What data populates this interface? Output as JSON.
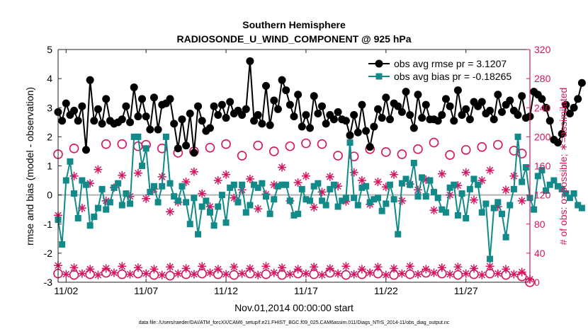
{
  "chart_data": {
    "type": "line",
    "title": "Southern Hemisphere",
    "subtitle": "RADIOSONDE_U_WIND_COMPONENT @ 925 hPa",
    "xlabel": "Nov.01,2014 00:00:00 start",
    "ylabel_left": "rmse and bias (model - observation)",
    "ylabel_right": "# of obs: o=possible; ∗=assimilated",
    "footer": "data file: /Users/raeder/DAI/ATM_forcXX/CAM6_setup/f.e21.FHIST_BGC.f09_025.CAM6assim.011/Diags_NTrS_2014-11/obs_diag_output.nc",
    "xlim": [
      1.5,
      31.0
    ],
    "ylim_left": [
      -3,
      5
    ],
    "ylim_right": [
      0,
      320
    ],
    "x_ticks": [
      2,
      7,
      12,
      17,
      22,
      27
    ],
    "x_tick_labels": [
      "11/02",
      "11/07",
      "11/12",
      "11/17",
      "11/22",
      "11/27"
    ],
    "y_ticks_left": [
      -3,
      -2,
      -1,
      0,
      1,
      2,
      3,
      4,
      5
    ],
    "y_ticks_right": [
      0,
      40,
      80,
      120,
      160,
      200,
      240,
      280,
      320
    ],
    "legend": [
      "obs avg rmse pr = 3.1207",
      "obs avg bias pr = -0.18265"
    ],
    "colors": {
      "rmse": "#000000",
      "bias": "#138a8a",
      "obs": "#d6145f",
      "zero_line": "#b3b3b3"
    },
    "time_start": 1.5,
    "time_step": 0.25,
    "series": [
      {
        "name": "obs avg rmse pr",
        "axis": "left",
        "values": [
          2.85,
          2.55,
          3.15,
          2.75,
          2.9,
          2.55,
          3.05,
          1.55,
          3.95,
          2.55,
          2.95,
          2.45,
          3.3,
          2.55,
          2.45,
          2.5,
          2.6,
          3.05,
          2.5,
          3.7,
          2.7,
          3.3,
          2.7,
          2.25,
          3.35,
          2.25,
          3.1,
          3.15,
          3.3,
          2.45,
          1.6,
          2.6,
          1.7,
          2.8,
          1.45,
          3.05,
          2.55,
          2.2,
          2.3,
          3.05,
          2.75,
          3.1,
          2.65,
          3.2,
          2.8,
          2.9,
          2.75,
          2.95,
          4.6,
          2.55,
          2.75,
          2.45,
          3.75,
          2.4,
          3.25,
          2.95,
          3.95,
          3.6,
          3.1,
          2.7,
          3.45,
          2.35,
          2.75,
          2.3,
          3.4,
          2.8,
          3.05,
          2.45,
          2.75,
          2.6,
          2.85,
          2.6,
          2.55,
          2.05,
          2.75,
          2.15,
          3.1,
          2.2,
          1.65,
          2.35,
          2.95,
          2.65,
          3.35,
          2.6,
          3.15,
          3.05,
          2.85,
          3.55,
          2.75,
          2.3,
          3.45,
          2.65,
          3.1,
          2.6,
          2.6,
          2.55,
          2.75,
          3.3,
          3.05,
          2.55,
          3.6,
          2.75,
          2.95,
          2.6,
          3.2,
          3.05,
          3.2,
          2.8,
          2.9,
          2.6,
          3.45,
          2.85,
          3.1,
          3.25,
          2.9,
          2.75,
          3.4,
          2.65,
          2.7,
          3.55,
          3.45,
          3.3,
          3.0,
          2.55,
          1.9,
          1.8,
          2.1,
          3.1,
          2.8,
          3.0,
          3.3,
          3.85
        ]
      },
      {
        "name": "obs avg bias pr",
        "axis": "left",
        "values": [
          -0.85,
          -1.7,
          0.5,
          1.15,
          0.05,
          -0.8,
          0.5,
          0.35,
          -1.05,
          -0.75,
          -0.45,
          0.2,
          -0.5,
          -0.25,
          0.25,
          0.4,
          -0.35,
          0.05,
          -0.3,
          2.0,
          2.0,
          1.0,
          1.6,
          0.1,
          0.3,
          -0.25,
          0.3,
          2.0,
          0.4,
          -0.05,
          -0.2,
          0.3,
          -0.25,
          -1.0,
          -0.1,
          -1.35,
          -0.4,
          -0.2,
          -0.6,
          -1.05,
          -0.4,
          0.0,
          -0.95,
          0.25,
          0.35,
          -0.25,
          0.35,
          -0.6,
          -0.35,
          0.35,
          0.25,
          0.4,
          -0.05,
          -0.65,
          -0.15,
          0.3,
          0.35,
          0.35,
          -0.2,
          -0.7,
          -0.65,
          0.2,
          -0.15,
          -0.2,
          0.3,
          0.4,
          -0.2,
          -0.35,
          0.2,
          0.35,
          -0.4,
          -0.2,
          -0.1,
          1.8,
          -0.1,
          -0.35,
          0.25,
          0.3,
          -0.25,
          -0.15,
          -0.1,
          -0.55,
          -0.3,
          0.35,
          -0.15,
          -1.35,
          0.4,
          0.55,
          0.35,
          1.1,
          -0.05,
          0.6,
          -0.05,
          0.5,
          0.1,
          -0.1,
          -0.5,
          -0.6,
          0.25,
          0.35,
          -0.7,
          0.05,
          -0.8,
          0.2,
          0.55,
          0.35,
          -0.6,
          -0.3,
          -2.2,
          -0.45,
          -0.25,
          -0.65,
          -1.45,
          -0.35,
          0.2,
          2.0,
          0.45,
          0.95,
          -0.1,
          -0.5,
          0.65,
          0.85,
          0.15,
          0.35,
          0.5,
          0.3,
          0.2,
          0.05,
          -0.1,
          0.05,
          -0.35,
          -0.45
        ]
      },
      {
        "name": "obs possible (o) - high",
        "axis": "right",
        "points": [
          [
            1.5,
            176
          ],
          [
            2.5,
            184
          ],
          [
            4.5,
            190
          ],
          [
            5.5,
            190
          ],
          [
            6.5,
            187
          ],
          [
            7.0,
            189
          ],
          [
            8.0,
            184
          ],
          [
            9.0,
            178
          ],
          [
            10.0,
            180
          ],
          [
            11.0,
            185
          ],
          [
            12.0,
            190
          ],
          [
            13.0,
            174
          ],
          [
            14.0,
            188
          ],
          [
            15.0,
            180
          ],
          [
            16.0,
            187
          ],
          [
            17.0,
            191
          ],
          [
            18.0,
            190
          ],
          [
            19.0,
            174
          ],
          [
            20.0,
            173
          ],
          [
            21.0,
            183
          ],
          [
            22.0,
            179
          ],
          [
            23.0,
            176
          ],
          [
            24.0,
            183
          ],
          [
            25.0,
            192
          ],
          [
            26.0,
            175
          ],
          [
            27.0,
            182
          ],
          [
            28.0,
            186
          ],
          [
            29.0,
            189
          ],
          [
            30.0,
            181
          ],
          [
            30.5,
            177
          ]
        ]
      },
      {
        "name": "obs possible (o) - low",
        "axis": "right",
        "points": [
          [
            1.5,
            12
          ],
          [
            2.5,
            10
          ],
          [
            3.5,
            11
          ],
          [
            4.5,
            13
          ],
          [
            5.5,
            11
          ],
          [
            6.5,
            12
          ],
          [
            7.5,
            10
          ],
          [
            8.5,
            9
          ],
          [
            9.5,
            11
          ],
          [
            10.5,
            12
          ],
          [
            11.5,
            11
          ],
          [
            12.5,
            10
          ],
          [
            13.5,
            12
          ],
          [
            14.5,
            11
          ],
          [
            15.5,
            10
          ],
          [
            16.5,
            12
          ],
          [
            17.5,
            11
          ],
          [
            18.5,
            13
          ],
          [
            19.5,
            10
          ],
          [
            20.5,
            11
          ],
          [
            21.5,
            12
          ],
          [
            22.5,
            10
          ],
          [
            23.5,
            11
          ],
          [
            24.5,
            13
          ],
          [
            25.5,
            12
          ],
          [
            26.5,
            10
          ],
          [
            27.5,
            11
          ],
          [
            28.5,
            12
          ],
          [
            29.5,
            10
          ],
          [
            30.5,
            8
          ],
          [
            31.0,
            0
          ]
        ]
      },
      {
        "name": "obs assimilated (*) - high",
        "axis": "right",
        "points": [
          [
            1.5,
            92
          ],
          [
            2.5,
            146
          ],
          [
            3.0,
            102
          ],
          [
            3.5,
            136
          ],
          [
            4.0,
            155
          ],
          [
            4.5,
            112
          ],
          [
            5.0,
            130
          ],
          [
            5.5,
            147
          ],
          [
            6.0,
            118
          ],
          [
            6.5,
            150
          ],
          [
            7.0,
            115
          ],
          [
            7.5,
            128
          ],
          [
            8.0,
            145
          ],
          [
            8.5,
            97
          ],
          [
            9.0,
            110
          ],
          [
            9.5,
            138
          ],
          [
            10.0,
            152
          ],
          [
            10.5,
            122
          ],
          [
            11.0,
            104
          ],
          [
            11.5,
            140
          ],
          [
            12.0,
            148
          ],
          [
            12.5,
            116
          ],
          [
            13.0,
            127
          ],
          [
            13.5,
            142
          ],
          [
            14.0,
            101
          ],
          [
            14.5,
            121
          ],
          [
            15.0,
            134
          ],
          [
            15.5,
            158
          ],
          [
            16.0,
            112
          ],
          [
            16.5,
            137
          ],
          [
            17.0,
            146
          ],
          [
            17.5,
            103
          ],
          [
            18.0,
            124
          ],
          [
            18.5,
            145
          ],
          [
            19.0,
            132
          ],
          [
            19.5,
            111
          ],
          [
            20.0,
            151
          ],
          [
            20.5,
            140
          ],
          [
            21.0,
            107
          ],
          [
            21.5,
            138
          ],
          [
            22.0,
            131
          ],
          [
            22.5,
            148
          ],
          [
            23.0,
            112
          ],
          [
            23.5,
            135
          ],
          [
            24.0,
            127
          ],
          [
            24.5,
            141
          ],
          [
            25.0,
            99
          ],
          [
            25.5,
            149
          ],
          [
            26.0,
            120
          ],
          [
            26.5,
            133
          ],
          [
            27.0,
            151
          ],
          [
            27.5,
            113
          ],
          [
            28.0,
            140
          ],
          [
            28.5,
            154
          ],
          [
            29.0,
            104
          ],
          [
            29.5,
            127
          ],
          [
            30.0,
            146
          ],
          [
            30.5,
            112
          ]
        ]
      },
      {
        "name": "obs assimilated (*) - low",
        "axis": "right",
        "points": [
          [
            1.5,
            23
          ],
          [
            2.0,
            11
          ],
          [
            2.5,
            20
          ],
          [
            3.0,
            12
          ],
          [
            3.5,
            18
          ],
          [
            4.0,
            10
          ],
          [
            4.5,
            19
          ],
          [
            5.0,
            13
          ],
          [
            5.5,
            22
          ],
          [
            6.0,
            11
          ],
          [
            6.5,
            20
          ],
          [
            7.0,
            12
          ],
          [
            7.5,
            18
          ],
          [
            8.0,
            10
          ],
          [
            8.5,
            21
          ],
          [
            9.0,
            12
          ],
          [
            9.5,
            19
          ],
          [
            10.0,
            11
          ],
          [
            10.5,
            22
          ],
          [
            11.0,
            13
          ],
          [
            11.5,
            18
          ],
          [
            12.0,
            11
          ],
          [
            12.5,
            21
          ],
          [
            13.0,
            12
          ],
          [
            13.5,
            19
          ],
          [
            14.0,
            10
          ],
          [
            14.5,
            22
          ],
          [
            15.0,
            13
          ],
          [
            15.5,
            20
          ],
          [
            16.0,
            11
          ],
          [
            16.5,
            18
          ],
          [
            17.0,
            12
          ],
          [
            17.5,
            21
          ],
          [
            18.0,
            10
          ],
          [
            18.5,
            19
          ],
          [
            19.0,
            12
          ],
          [
            19.5,
            22
          ],
          [
            20.0,
            11
          ],
          [
            20.5,
            18
          ],
          [
            21.0,
            13
          ],
          [
            21.5,
            21
          ],
          [
            22.0,
            10
          ],
          [
            22.5,
            19
          ],
          [
            23.0,
            12
          ],
          [
            23.5,
            22
          ],
          [
            24.0,
            11
          ],
          [
            24.5,
            18
          ],
          [
            25.0,
            13
          ],
          [
            25.5,
            20
          ],
          [
            26.0,
            11
          ],
          [
            26.5,
            21
          ],
          [
            27.0,
            12
          ],
          [
            27.5,
            19
          ],
          [
            28.0,
            10
          ],
          [
            28.5,
            22
          ],
          [
            29.0,
            12
          ],
          [
            29.5,
            18
          ],
          [
            30.0,
            11
          ],
          [
            30.5,
            14
          ],
          [
            31.0,
            4
          ]
        ]
      }
    ]
  }
}
